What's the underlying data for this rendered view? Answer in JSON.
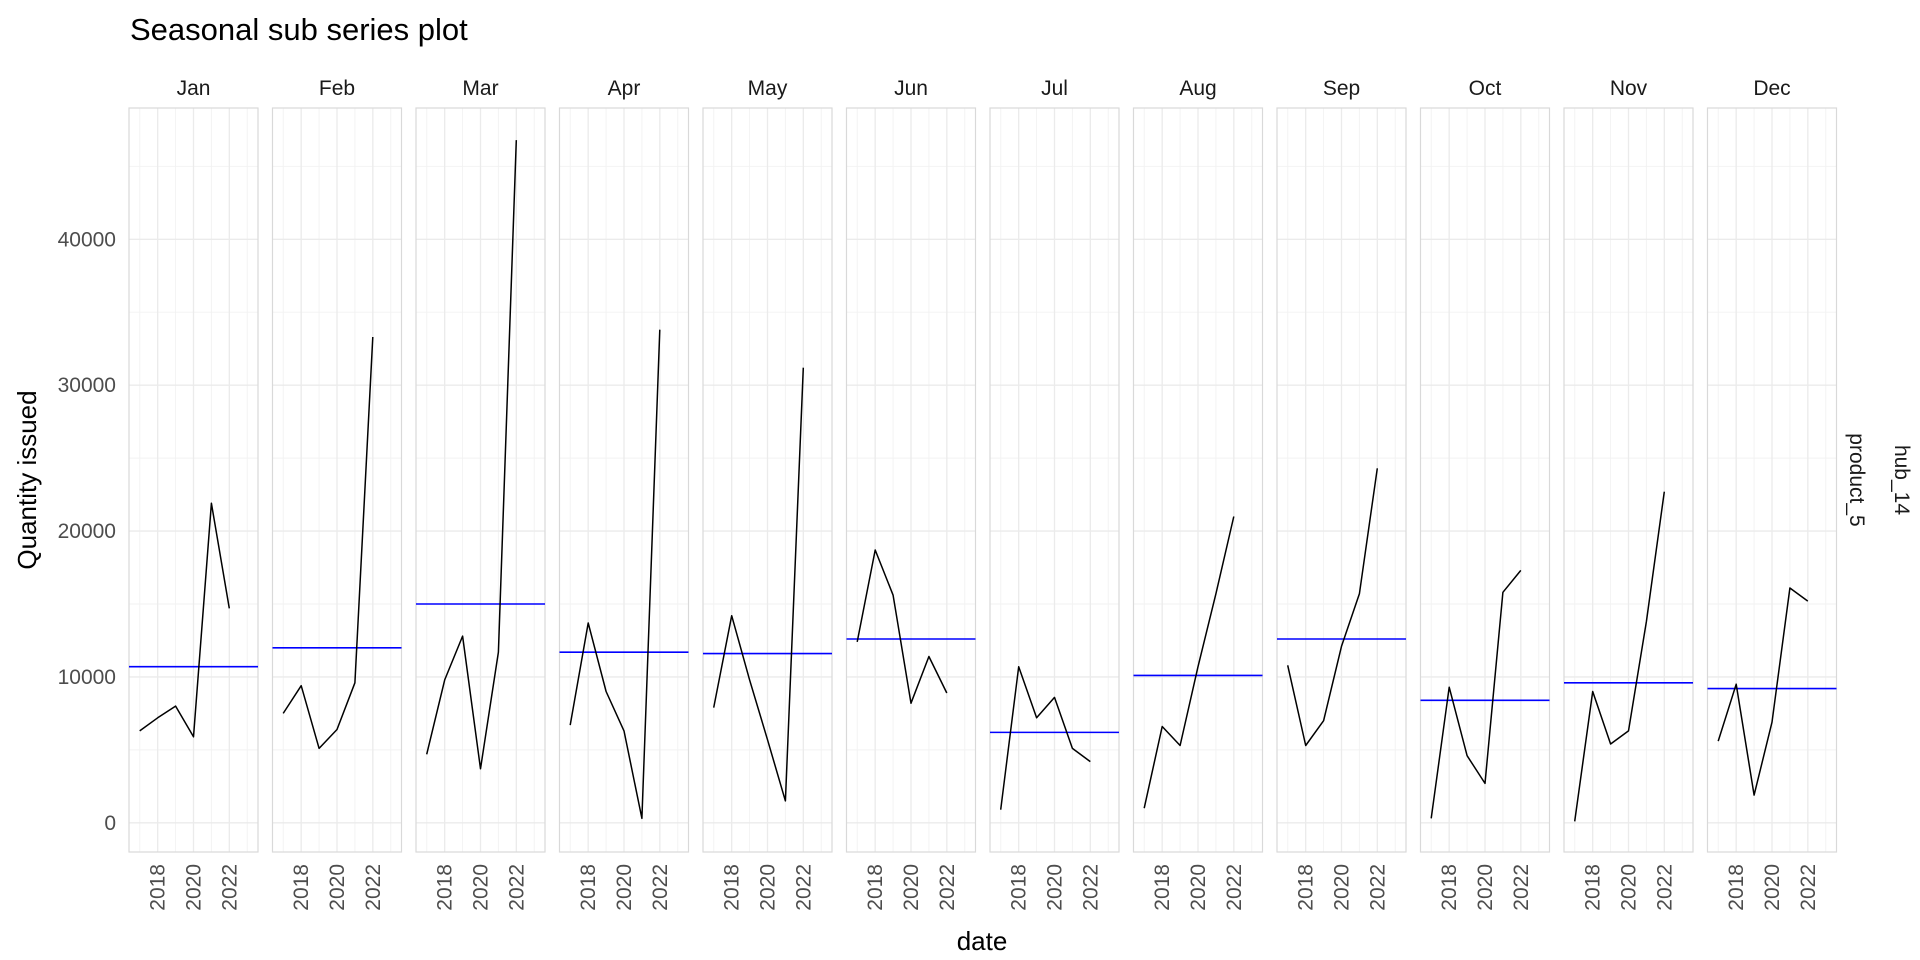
{
  "chart_data": {
    "type": "line",
    "title": "Seasonal sub series plot",
    "xlabel": "date",
    "ylabel": "Quantity issued",
    "facet_labels": [
      "hub_14",
      "product_5"
    ],
    "ylim": [
      -2000,
      49000
    ],
    "y_ticks": [
      0,
      10000,
      20000,
      30000,
      40000
    ],
    "x_ticks": [
      2018,
      2020,
      2022
    ],
    "xlim": [
      2016.4,
      2023.6
    ],
    "grid": true,
    "line_color": "#000000",
    "mean_color": "#0000ff",
    "panels": [
      {
        "month": "Jan",
        "mean": 10700,
        "points": [
          [
            2017,
            6300
          ],
          [
            2018,
            7200
          ],
          [
            2019,
            8000
          ],
          [
            2020,
            5900
          ],
          [
            2021,
            21900
          ],
          [
            2022,
            14700
          ]
        ]
      },
      {
        "month": "Feb",
        "mean": 12000,
        "points": [
          [
            2017,
            7500
          ],
          [
            2018,
            9400
          ],
          [
            2019,
            5100
          ],
          [
            2020,
            6400
          ],
          [
            2021,
            9600
          ],
          [
            2022,
            33300
          ]
        ]
      },
      {
        "month": "Mar",
        "mean": 15000,
        "points": [
          [
            2017,
            4700
          ],
          [
            2018,
            9800
          ],
          [
            2019,
            12800
          ],
          [
            2020,
            3700
          ],
          [
            2021,
            11700
          ],
          [
            2022,
            46800
          ]
        ]
      },
      {
        "month": "Apr",
        "mean": 11700,
        "points": [
          [
            2017,
            6700
          ],
          [
            2018,
            13700
          ],
          [
            2019,
            9000
          ],
          [
            2020,
            6300
          ],
          [
            2021,
            300
          ],
          [
            2022,
            33800
          ]
        ]
      },
      {
        "month": "May",
        "mean": 11600,
        "points": [
          [
            2017,
            7900
          ],
          [
            2018,
            14200
          ],
          [
            2019,
            9800
          ],
          [
            2020,
            5700
          ],
          [
            2021,
            1500
          ],
          [
            2022,
            31200
          ]
        ]
      },
      {
        "month": "Jun",
        "mean": 12600,
        "points": [
          [
            2017,
            12400
          ],
          [
            2018,
            18700
          ],
          [
            2019,
            15600
          ],
          [
            2020,
            8200
          ],
          [
            2021,
            11400
          ],
          [
            2022,
            8900
          ]
        ]
      },
      {
        "month": "Jul",
        "mean": 6200,
        "points": [
          [
            2017,
            900
          ],
          [
            2018,
            10700
          ],
          [
            2019,
            7200
          ],
          [
            2020,
            8600
          ],
          [
            2021,
            5100
          ],
          [
            2022,
            4200
          ]
        ]
      },
      {
        "month": "Aug",
        "mean": 10100,
        "points": [
          [
            2017,
            1000
          ],
          [
            2018,
            6600
          ],
          [
            2019,
            5300
          ],
          [
            2020,
            10700
          ],
          [
            2021,
            15700
          ],
          [
            2022,
            21000
          ]
        ]
      },
      {
        "month": "Sep",
        "mean": 12600,
        "points": [
          [
            2017,
            10800
          ],
          [
            2018,
            5300
          ],
          [
            2019,
            7000
          ],
          [
            2020,
            12100
          ],
          [
            2021,
            15700
          ],
          [
            2022,
            24300
          ]
        ]
      },
      {
        "month": "Oct",
        "mean": 8400,
        "points": [
          [
            2017,
            300
          ],
          [
            2018,
            9300
          ],
          [
            2019,
            4600
          ],
          [
            2020,
            2700
          ],
          [
            2021,
            15800
          ],
          [
            2022,
            17300
          ]
        ]
      },
      {
        "month": "Nov",
        "mean": 9600,
        "points": [
          [
            2017,
            100
          ],
          [
            2018,
            9000
          ],
          [
            2019,
            5400
          ],
          [
            2020,
            6300
          ],
          [
            2021,
            13800
          ],
          [
            2022,
            22700
          ]
        ]
      },
      {
        "month": "Dec",
        "mean": 9200,
        "points": [
          [
            2017,
            5600
          ],
          [
            2018,
            9500
          ],
          [
            2019,
            1900
          ],
          [
            2020,
            6900
          ],
          [
            2021,
            16100
          ],
          [
            2022,
            15200
          ]
        ]
      }
    ]
  }
}
